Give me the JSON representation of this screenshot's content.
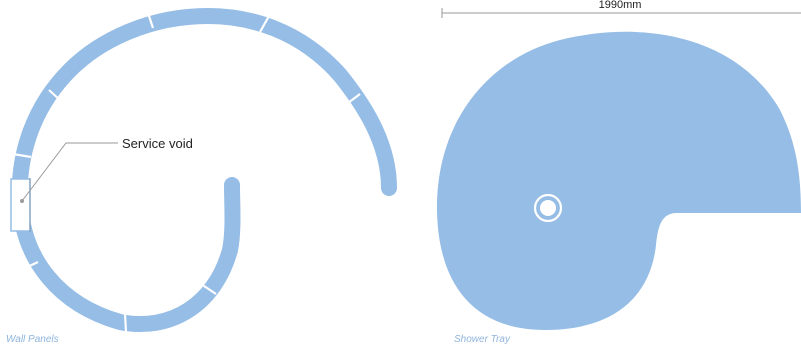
{
  "colors": {
    "panel_fill": "#95bde6",
    "panel_divider": "#ffffff",
    "caption": "#8fb5dd",
    "label": "#222222",
    "leader": "#9a9a9a",
    "drain_ring": "#ffffff"
  },
  "wall_panels": {
    "caption": "Wall Panels",
    "annotation": "Service void"
  },
  "shower_tray": {
    "caption": "Shower Tray",
    "dimension": "1990mm"
  }
}
